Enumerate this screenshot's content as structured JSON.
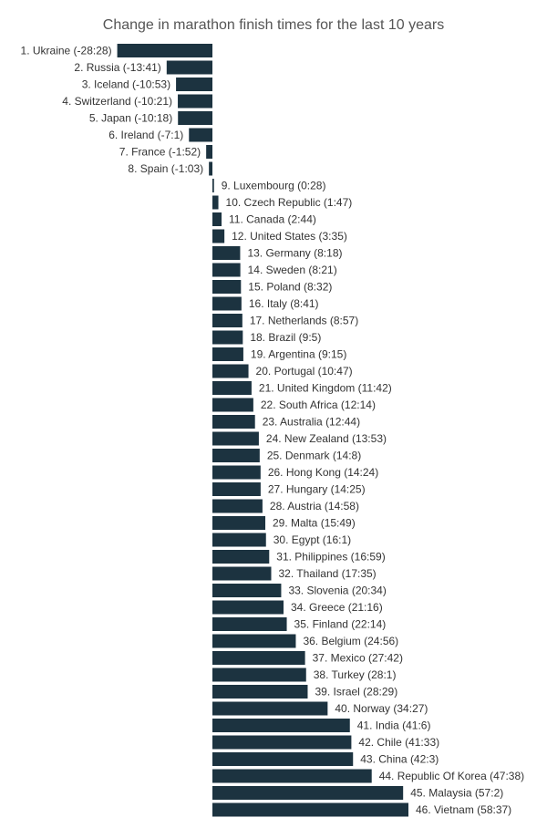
{
  "chart_data": {
    "type": "bar",
    "orientation": "horizontal",
    "title": "Change in marathon finish times for the last 10 years",
    "xlabel": "",
    "ylabel": "",
    "unit": "seconds",
    "grid": false,
    "legend": "none",
    "bar_color": "#1c3340",
    "categories": [
      "1. Ukraine (-28:28)",
      "2. Russia (-13:41)",
      "3. Iceland (-10:53)",
      "4. Switzerland (-10:21)",
      "5. Japan (-10:18)",
      "6. Ireland (-7:1)",
      "7. France (-1:52)",
      "8. Spain (-1:03)",
      "9. Luxembourg (0:28)",
      "10. Czech Republic (1:47)",
      "11. Canada (2:44)",
      "12. United States (3:35)",
      "13. Germany (8:18)",
      "14. Sweden (8:21)",
      "15. Poland (8:32)",
      "16. Italy (8:41)",
      "17. Netherlands (8:57)",
      "18. Brazil (9:5)",
      "19. Argentina (9:15)",
      "20. Portugal (10:47)",
      "21. United Kingdom (11:42)",
      "22. South Africa (12:14)",
      "23. Australia (12:44)",
      "24. New Zealand (13:53)",
      "25. Denmark (14:8)",
      "26. Hong Kong (14:24)",
      "27. Hungary (14:25)",
      "28. Austria (14:58)",
      "29. Malta (15:49)",
      "30. Egypt (16:1)",
      "31. Philippines (16:59)",
      "32. Thailand (17:35)",
      "33. Slovenia (20:34)",
      "34. Greece (21:16)",
      "35. Finland (22:14)",
      "36. Belgium (24:56)",
      "37. Mexico (27:42)",
      "38. Turkey (28:1)",
      "39. Israel (28:29)",
      "40. Norway (34:27)",
      "41. India (41:6)",
      "42. Chile (41:33)",
      "43. China (42:3)",
      "44. Republic Of Korea (47:38)",
      "45. Malaysia (57:2)",
      "46. Vietnam (58:37)"
    ],
    "values": [
      -1708,
      -821,
      -653,
      -621,
      -618,
      -421,
      -112,
      -63,
      28,
      107,
      164,
      215,
      498,
      501,
      512,
      521,
      537,
      545,
      555,
      647,
      702,
      734,
      764,
      833,
      848,
      864,
      865,
      898,
      949,
      961,
      1019,
      1055,
      1234,
      1276,
      1334,
      1496,
      1662,
      1681,
      1709,
      2067,
      2466,
      2493,
      2523,
      2858,
      3422,
      3517
    ]
  }
}
